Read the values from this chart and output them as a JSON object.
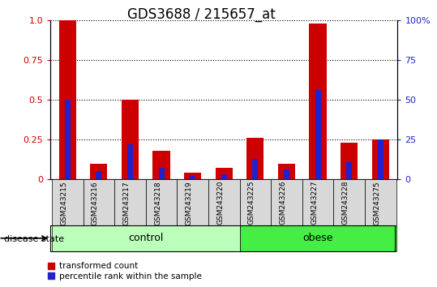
{
  "title": "GDS3688 / 215657_at",
  "samples": [
    "GSM243215",
    "GSM243216",
    "GSM243217",
    "GSM243218",
    "GSM243219",
    "GSM243220",
    "GSM243225",
    "GSM243226",
    "GSM243227",
    "GSM243228",
    "GSM243275"
  ],
  "transformed_count": [
    1.0,
    0.1,
    0.5,
    0.18,
    0.04,
    0.07,
    0.26,
    0.1,
    0.98,
    0.23,
    0.25
  ],
  "percentile_rank": [
    0.5,
    0.05,
    0.22,
    0.07,
    0.02,
    0.03,
    0.13,
    0.06,
    0.56,
    0.11,
    0.25
  ],
  "groups": [
    {
      "label": "control",
      "start": 0,
      "end": 5,
      "color": "#bbffbb"
    },
    {
      "label": "obese",
      "start": 6,
      "end": 10,
      "color": "#44ee44"
    }
  ],
  "disease_state_label": "disease state",
  "red_color": "#cc0000",
  "blue_color": "#2222cc",
  "red_bar_width": 0.55,
  "blue_bar_width": 0.18,
  "ylim": [
    0,
    1.0
  ],
  "yticks_left": [
    0,
    0.25,
    0.5,
    0.75,
    1.0
  ],
  "yticks_right": [
    0,
    25,
    50,
    75,
    100
  ],
  "legend_red": "transformed count",
  "legend_blue": "percentile rank within the sample",
  "bg_color": "#d8d8d8",
  "title_fontsize": 12,
  "tick_fontsize": 8,
  "label_fontsize": 9
}
